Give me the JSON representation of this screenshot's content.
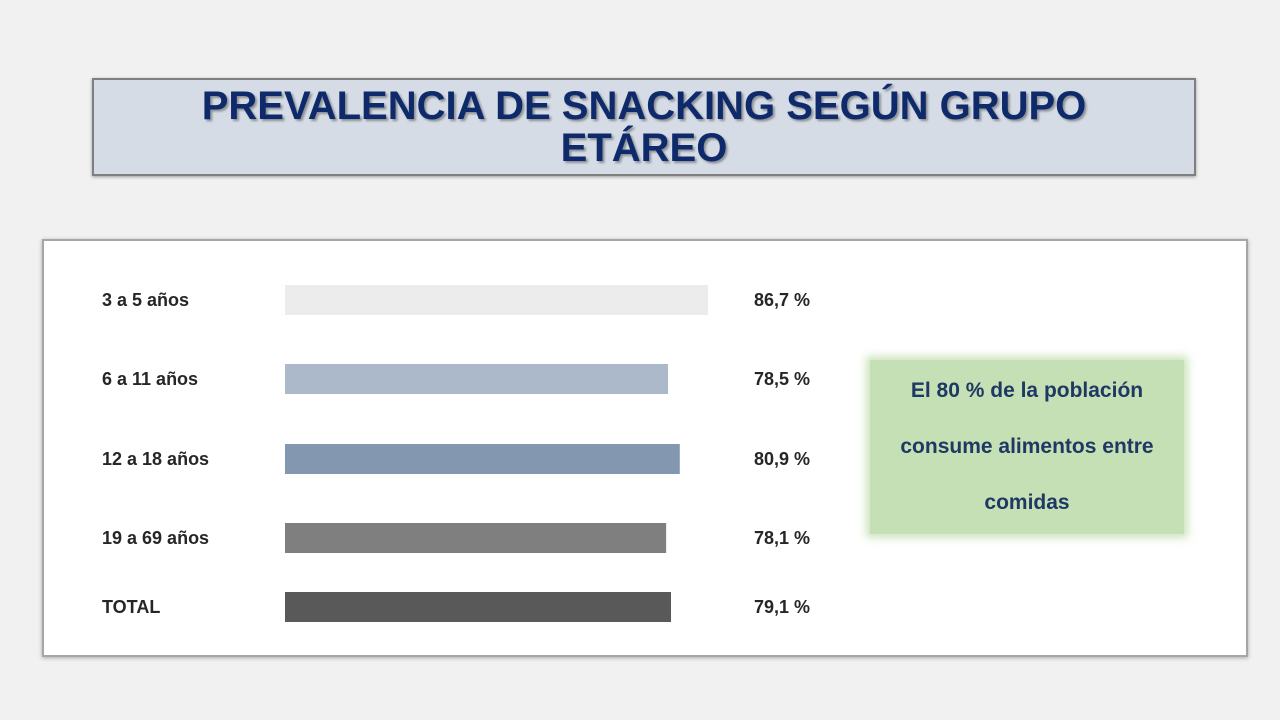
{
  "header": {
    "title": "PREVALENCIA DE SNACKING SEGÚN GRUPO ETÁREO"
  },
  "chart_data": {
    "type": "bar",
    "orientation": "horizontal",
    "categories": [
      "3 a 5 años",
      "6 a 11 años",
      "12 a 18 años",
      "19 a 69 años",
      "TOTAL"
    ],
    "values": [
      86.7,
      78.5,
      80.9,
      78.1,
      79.1
    ],
    "value_labels": [
      "86,7 %",
      "78,5 %",
      "80,9 %",
      "78,1 %",
      "79,1 %"
    ],
    "bar_colors": [
      "#ececec",
      "#acb9ca",
      "#8497b0",
      "#7f7f7f",
      "#595959"
    ],
    "xlim": [
      0,
      100
    ],
    "grid": false,
    "legend": "none"
  },
  "callout": {
    "text": "El 80 % de la población consume alimentos entre comidas"
  }
}
